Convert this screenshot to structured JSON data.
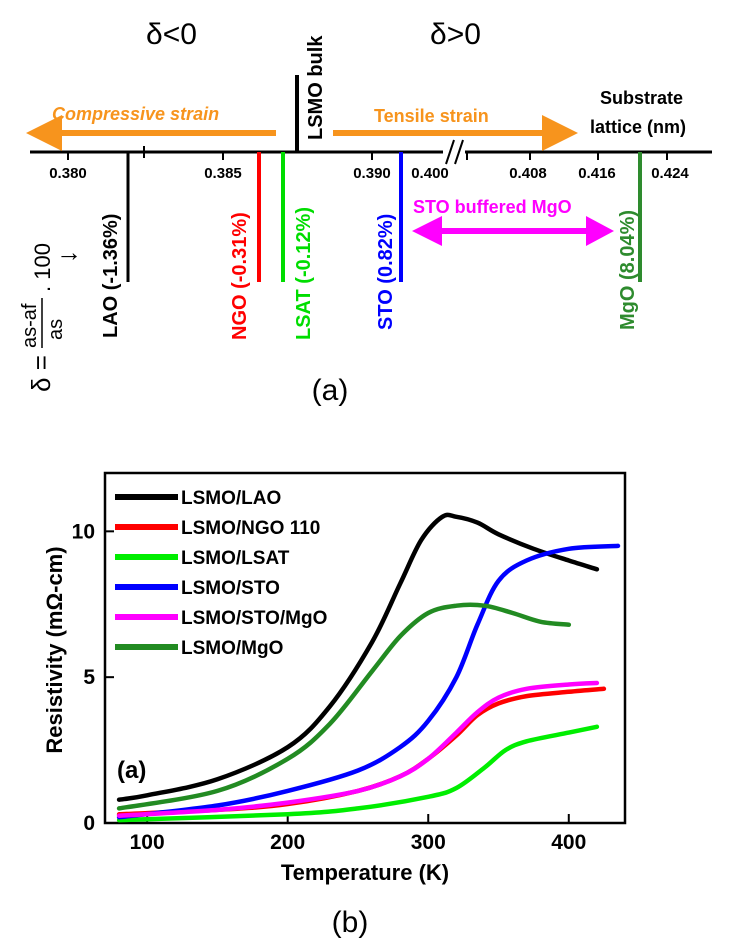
{
  "panel_a": {
    "caption": "(a)",
    "delta_neg": "δ<0",
    "delta_pos": "δ>0",
    "bulk_label": "LSMO bulk",
    "compressive_label": "Compressive strain",
    "tensile_label": "Tensile strain",
    "substrate_label_1": "Substrate",
    "substrate_label_2": "lattice (nm)",
    "ticks": [
      "0.380",
      "0.385",
      "0.390",
      "0.400",
      "0.408",
      "0.416",
      "0.424"
    ],
    "substrates": [
      {
        "label": "LAO (-1.36%)",
        "color": "#000000"
      },
      {
        "label": "NGO (-0.31%)",
        "color": "#ff0000"
      },
      {
        "label": "LSAT (-0.12%)",
        "color": "#00dd00"
      },
      {
        "label": "STO (0.82%)",
        "color": "#0000ff"
      },
      {
        "label": "MgO (8.04%)",
        "color": "#2e8b2e"
      }
    ],
    "buffer_label": "STO buffered MgO",
    "formula_delta": "δ =",
    "formula_num": "as-af",
    "formula_den": "as",
    "formula_factor": ". 100",
    "formula_arrow": "→",
    "colors": {
      "orange": "#f7941d",
      "magenta": "#ff00ff"
    }
  },
  "panel_b": {
    "caption": "(b)"
  },
  "chart_data": {
    "type": "line",
    "xlabel": "Temperature (K)",
    "ylabel": "Resistivity (mΩ-cm)",
    "xlim": [
      70,
      440
    ],
    "ylim": [
      0,
      12
    ],
    "xticks": [
      100,
      200,
      300,
      400
    ],
    "yticks": [
      0,
      5,
      10
    ],
    "annotation": "(a)",
    "legend_position": "top-left",
    "series": [
      {
        "name": "LSMO/LAO",
        "color": "#000000",
        "x": [
          80,
          100,
          150,
          200,
          230,
          260,
          280,
          295,
          310,
          320,
          335,
          350,
          375,
          400,
          420
        ],
        "y": [
          0.8,
          0.95,
          1.5,
          2.6,
          4.0,
          6.2,
          8.2,
          9.7,
          10.5,
          10.5,
          10.3,
          9.9,
          9.4,
          9.0,
          8.7
        ]
      },
      {
        "name": "LSMO/NGO 110",
        "color": "#ff0000",
        "x": [
          80,
          150,
          200,
          250,
          280,
          300,
          320,
          335,
          350,
          370,
          400,
          425
        ],
        "y": [
          0.3,
          0.45,
          0.65,
          1.1,
          1.6,
          2.2,
          3.0,
          3.7,
          4.1,
          4.35,
          4.5,
          4.6
        ]
      },
      {
        "name": "LSMO/LSAT",
        "color": "#00ee00",
        "x": [
          80,
          200,
          250,
          300,
          320,
          340,
          355,
          370,
          400,
          420
        ],
        "y": [
          0.1,
          0.3,
          0.5,
          0.9,
          1.2,
          1.9,
          2.5,
          2.8,
          3.1,
          3.3
        ]
      },
      {
        "name": "LSMO/STO",
        "color": "#0000ff",
        "x": [
          80,
          150,
          200,
          250,
          280,
          300,
          320,
          335,
          350,
          370,
          400,
          435
        ],
        "y": [
          0.2,
          0.6,
          1.1,
          1.8,
          2.6,
          3.5,
          5.0,
          6.8,
          8.3,
          9.0,
          9.4,
          9.5
        ]
      },
      {
        "name": "LSMO/STO/MgO",
        "color": "#ff00ff",
        "x": [
          80,
          150,
          200,
          250,
          280,
          300,
          320,
          335,
          350,
          370,
          400,
          420
        ],
        "y": [
          0.25,
          0.45,
          0.7,
          1.1,
          1.6,
          2.2,
          3.1,
          3.8,
          4.3,
          4.6,
          4.75,
          4.8
        ]
      },
      {
        "name": "LSMO/MgO",
        "color": "#228b22",
        "x": [
          80,
          150,
          200,
          230,
          260,
          280,
          300,
          320,
          340,
          360,
          380,
          400
        ],
        "y": [
          0.5,
          1.1,
          2.2,
          3.4,
          5.2,
          6.4,
          7.2,
          7.45,
          7.45,
          7.2,
          6.9,
          6.8
        ]
      }
    ]
  }
}
